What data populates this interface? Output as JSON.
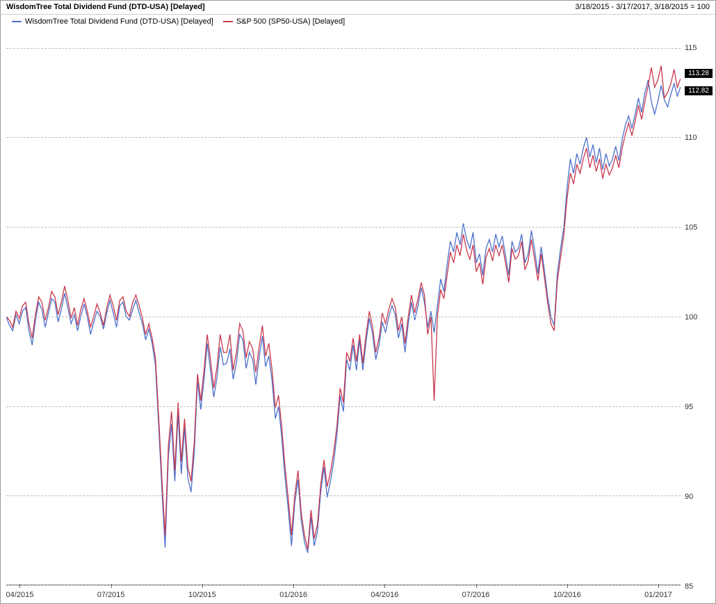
{
  "header": {
    "title": "WisdomTree Total Dividend Fund (DTD-USA) [Delayed]",
    "date_range": "3/18/2015 - 3/17/2017, 3/18/2015 = 100"
  },
  "legend": {
    "items": [
      {
        "label": "WisdomTree Total Dividend Fund (DTD-USA) [Delayed]",
        "color": "#4a6fc9"
      },
      {
        "label": "S&P 500 (SP50-USA) [Delayed]",
        "color": "#c9364a"
      }
    ]
  },
  "chart": {
    "type": "line",
    "background_color": "#ffffff",
    "grid_color": "#bbbbbb",
    "axis_color": "#888888",
    "title_fontsize": 11,
    "label_fontsize": 11,
    "line_width": 1.3,
    "ylim": [
      85,
      116
    ],
    "yticks": [
      85,
      90,
      95,
      100,
      105,
      110,
      115
    ],
    "x_categories": [
      "04/2015",
      "07/2015",
      "10/2015",
      "01/2016",
      "04/2016",
      "07/2016",
      "10/2016",
      "01/2017"
    ],
    "x_positions_pct": [
      2,
      15.5,
      29,
      42.5,
      56,
      69.5,
      83,
      96.5
    ],
    "end_values": {
      "series_a": 112.82,
      "series_b": 113.28
    },
    "colors": {
      "series_a": "#4a6fc9",
      "series_b": "#c9364a"
    },
    "series_a": [
      100,
      99.5,
      99.2,
      100.1,
      99.6,
      100.3,
      100.5,
      99.2,
      98.4,
      99.8,
      100.8,
      100.4,
      99.4,
      100.2,
      101.0,
      100.8,
      99.7,
      100.4,
      101.3,
      100.5,
      99.6,
      100.1,
      99.2,
      100.0,
      100.7,
      100.0,
      99.0,
      99.7,
      100.3,
      100.0,
      99.3,
      100.2,
      100.9,
      100.2,
      99.4,
      100.6,
      100.8,
      100.0,
      99.8,
      100.4,
      100.9,
      100.2,
      99.6,
      98.7,
      99.3,
      98.5,
      97.3,
      94.0,
      90.4,
      87.1,
      92.2,
      94.0,
      90.8,
      94.6,
      91.2,
      93.8,
      91.0,
      90.2,
      92.4,
      96.4,
      94.8,
      96.5,
      98.5,
      97.0,
      95.5,
      96.6,
      98.3,
      97.3,
      97.4,
      98.2,
      96.5,
      97.4,
      99.0,
      98.7,
      97.1,
      98.0,
      97.6,
      96.2,
      97.7,
      98.9,
      97.2,
      97.8,
      96.4,
      94.3,
      95.0,
      93.2,
      91.0,
      89.2,
      87.2,
      89.6,
      90.9,
      88.6,
      87.4,
      86.8,
      88.8,
      87.2,
      88.0,
      90.2,
      91.6,
      89.9,
      90.8,
      91.9,
      93.4,
      95.6,
      94.7,
      97.6,
      97.0,
      98.4,
      97.0,
      98.7,
      97.0,
      98.6,
      99.9,
      99.0,
      97.6,
      98.4,
      99.7,
      99.1,
      100.0,
      100.6,
      100.1,
      98.8,
      99.6,
      98.0,
      99.6,
      100.8,
      99.8,
      100.6,
      101.6,
      100.8,
      99.4,
      100.3,
      99.1,
      100.6,
      102.1,
      101.4,
      102.9,
      104.2,
      103.6,
      104.7,
      104.0,
      105.2,
      104.3,
      103.8,
      104.7,
      103.0,
      103.5,
      102.3,
      103.8,
      104.3,
      103.6,
      104.6,
      103.9,
      104.5,
      103.4,
      102.3,
      104.2,
      103.6,
      103.8,
      104.6,
      103.0,
      103.5,
      104.8,
      103.7,
      102.4,
      103.9,
      102.6,
      101.1,
      100.0,
      99.5,
      102.4,
      103.8,
      105.0,
      107.2,
      108.8,
      108.0,
      109.1,
      108.5,
      109.4,
      110.0,
      108.9,
      109.6,
      108.6,
      109.4,
      108.2,
      109.1,
      108.4,
      108.8,
      109.5,
      108.7,
      109.9,
      110.7,
      111.2,
      110.5,
      111.3,
      112.2,
      111.4,
      112.5,
      113.2,
      112.0,
      111.3,
      112.0,
      112.9,
      112.1,
      111.7,
      112.4,
      113.0,
      112.3,
      112.82
    ],
    "series_b": [
      100,
      99.8,
      99.4,
      100.3,
      99.9,
      100.6,
      100.8,
      99.6,
      98.8,
      100.1,
      101.1,
      100.8,
      99.8,
      100.5,
      101.4,
      101.1,
      100.1,
      100.8,
      101.7,
      100.9,
      99.9,
      100.5,
      99.5,
      100.4,
      101.0,
      100.3,
      99.4,
      100.0,
      100.7,
      100.2,
      99.5,
      100.5,
      101.2,
      100.6,
      99.8,
      100.9,
      101.1,
      100.3,
      100.0,
      100.8,
      101.2,
      100.6,
      99.9,
      99.0,
      99.6,
      98.8,
      97.7,
      94.5,
      91.0,
      87.8,
      92.8,
      94.7,
      91.4,
      95.2,
      91.9,
      94.3,
      91.6,
      90.8,
      93.0,
      96.8,
      95.3,
      97.0,
      99.0,
      97.6,
      96.0,
      97.2,
      99.0,
      98.0,
      98.0,
      99.0,
      97.0,
      98.0,
      99.6,
      99.2,
      97.7,
      98.6,
      98.2,
      96.9,
      98.3,
      99.5,
      97.8,
      98.5,
      97.0,
      94.9,
      95.6,
      93.8,
      91.6,
      89.8,
      87.8,
      90.0,
      91.4,
      89.0,
      87.8,
      87.0,
      89.2,
      87.6,
      88.4,
      90.6,
      92.0,
      90.5,
      91.3,
      92.4,
      93.9,
      96.0,
      95.2,
      98.0,
      97.5,
      98.8,
      97.5,
      99.0,
      97.4,
      99.0,
      100.3,
      99.4,
      98.0,
      98.8,
      100.2,
      99.6,
      100.4,
      101.0,
      100.5,
      99.2,
      100.0,
      98.5,
      100.0,
      101.2,
      100.2,
      101.0,
      101.9,
      101.2,
      99.0,
      100.0,
      95.3,
      100.0,
      101.5,
      101.0,
      102.3,
      103.6,
      103.0,
      104.0,
      103.4,
      104.6,
      103.7,
      103.2,
      104.0,
      102.5,
      103.0,
      101.8,
      103.3,
      103.8,
      103.1,
      104.0,
      103.4,
      104.0,
      103.0,
      101.9,
      103.8,
      103.2,
      103.4,
      104.2,
      102.6,
      103.1,
      104.3,
      103.2,
      102.0,
      103.5,
      102.2,
      100.8,
      99.6,
      99.2,
      102.0,
      103.3,
      104.6,
      106.6,
      108.0,
      107.4,
      108.5,
      108.0,
      108.8,
      109.4,
      108.3,
      109.0,
      108.1,
      108.8,
      107.7,
      108.5,
      107.9,
      108.3,
      109.0,
      108.3,
      109.4,
      110.2,
      110.8,
      110.1,
      110.9,
      111.8,
      111.0,
      112.0,
      112.9,
      113.9,
      112.8,
      113.2,
      114.0,
      112.2,
      112.5,
      113.0,
      113.8,
      112.8,
      113.28
    ]
  }
}
